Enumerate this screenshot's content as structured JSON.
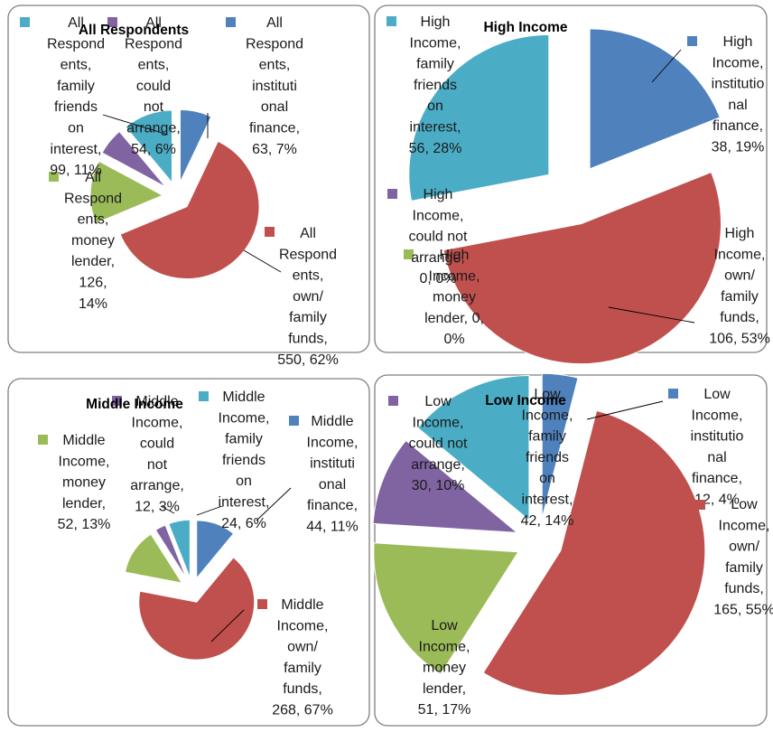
{
  "colors": {
    "institutional": "#4F81BD",
    "own_family": "#C0504D",
    "money_lender": "#9BBB59",
    "could_not_arrange": "#8064A2",
    "family_friends": "#4BACC6",
    "frame": "#7F7F7F"
  },
  "chart_data": [
    {
      "type": "pie",
      "title": "All Respondents",
      "slices": [
        {
          "label": "All Respondents, institutional finance, 63, 7%",
          "value": 63,
          "percent": 7,
          "color": "#4F81BD"
        },
        {
          "label": "All Respondents, own/ family funds, 550, 62%",
          "value": 550,
          "percent": 62,
          "color": "#C0504D"
        },
        {
          "label": "All Respondents, money lender, 126, 14%",
          "value": 126,
          "percent": 14,
          "color": "#9BBB59"
        },
        {
          "label": "All Respondents, could not arrange, 54, 6%",
          "value": 54,
          "percent": 6,
          "color": "#8064A2"
        },
        {
          "label": "All Respondents, family friends on interest, 99, 11%",
          "value": 99,
          "percent": 11,
          "color": "#4BACC6"
        }
      ]
    },
    {
      "type": "pie",
      "title": "High Income",
      "slices": [
        {
          "label": "High Income, institutional finance, 38, 19%",
          "value": 38,
          "percent": 19,
          "color": "#4F81BD"
        },
        {
          "label": "High Income, own/ family funds, 106, 53%",
          "value": 106,
          "percent": 53,
          "color": "#C0504D"
        },
        {
          "label": "High Income, money lender, 0, 0%",
          "value": 0,
          "percent": 0,
          "color": "#9BBB59"
        },
        {
          "label": "High Income, could not arrange, 0, 0%",
          "value": 0,
          "percent": 0,
          "color": "#8064A2"
        },
        {
          "label": "High Income, family friends on interest, 56, 28%",
          "value": 56,
          "percent": 28,
          "color": "#4BACC6"
        }
      ]
    },
    {
      "type": "pie",
      "title": "Middle Income",
      "slices": [
        {
          "label": "Middle Income, institutional finance, 44, 11%",
          "value": 44,
          "percent": 11,
          "color": "#4F81BD"
        },
        {
          "label": "Middle Income, own/ family funds, 268, 67%",
          "value": 268,
          "percent": 67,
          "color": "#C0504D"
        },
        {
          "label": "Middle Income, money lender, 52, 13%",
          "value": 52,
          "percent": 13,
          "color": "#9BBB59"
        },
        {
          "label": "Middle Income, could not arrange, 12, 3%",
          "value": 12,
          "percent": 3,
          "color": "#8064A2"
        },
        {
          "label": "Middle Income, family friends on interest, 24, 6%",
          "value": 24,
          "percent": 6,
          "color": "#4BACC6"
        }
      ]
    },
    {
      "type": "pie",
      "title": "Low Income",
      "slices": [
        {
          "label": "Low Income, institutional finance, 12, 4%",
          "value": 12,
          "percent": 4,
          "color": "#4F81BD"
        },
        {
          "label": "Low Income, own/ family funds, 165, 55%",
          "value": 165,
          "percent": 55,
          "color": "#C0504D"
        },
        {
          "label": "Low Income, money lender, 51, 17%",
          "value": 51,
          "percent": 17,
          "color": "#9BBB59"
        },
        {
          "label": "Low Income, could not arrange, 30, 10%",
          "value": 30,
          "percent": 10,
          "color": "#8064A2"
        },
        {
          "label": "Low Income, family friends on interest, 42, 14%",
          "value": 42,
          "percent": 14,
          "color": "#4BACC6"
        }
      ]
    }
  ]
}
